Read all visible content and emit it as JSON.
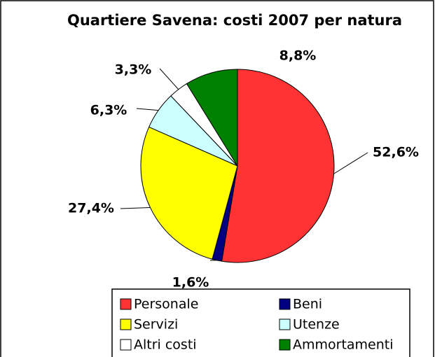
{
  "chart_data": {
    "type": "pie",
    "title": "Quartiere Savena: costi 2007 per natura",
    "categories": [
      "Personale",
      "Beni",
      "Servizi",
      "Utenze",
      "Altri costi",
      "Ammortamenti"
    ],
    "values": [
      52.6,
      1.6,
      27.4,
      6.3,
      3.3,
      8.8
    ],
    "value_labels": [
      "52,6%",
      "1,6%",
      "27,4%",
      "6,3%",
      "3,3%",
      "8,8%"
    ],
    "colors": [
      "#ff3333",
      "#000080",
      "#ffff00",
      "#ccffff",
      "#ffffff",
      "#008000"
    ],
    "legend": "bottom"
  }
}
